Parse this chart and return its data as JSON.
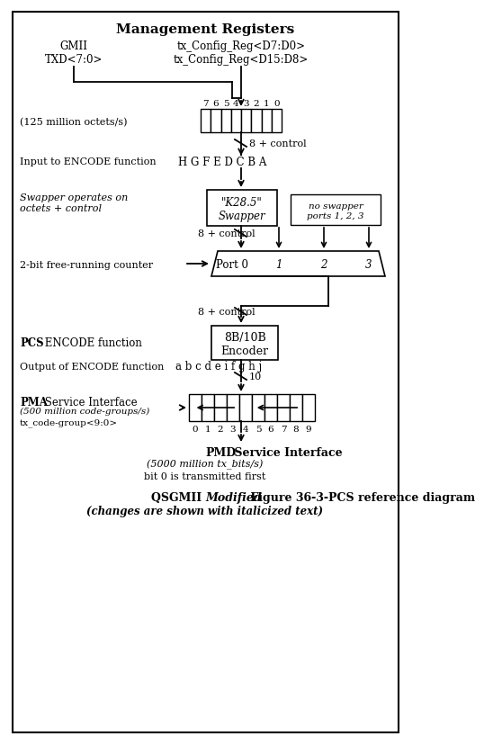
{
  "title": "Management Registers",
  "fig_width": 4.37,
  "fig_height": 8.09,
  "bg_color": "#ffffff",
  "line_color": "#000000",
  "gmii_label": "GMII\nTXD<7:0>",
  "config_label": "tx_Config_Reg<D7:D0>\ntx_Config_Reg<D15:D8>",
  "reg8_numbers": [
    "7",
    "6",
    "5",
    "4",
    "3",
    "2",
    "1",
    "0"
  ],
  "reg8_label": "(125 million octets/s)",
  "encode_input_label": "Input to ENCODE function",
  "hgfe_label": "H G F E D C B A",
  "swapper_side_label": "Swapper operates on\noctets + control",
  "swapper_box_label": "\"K28.5\"\nSwapper",
  "noswapper_label": "no swapper\nports 1, 2, 3",
  "counter_label": "2-bit free-running counter",
  "port_labels": [
    "Port 0",
    "1",
    "2",
    "3"
  ],
  "pcs_label": "PCS ENCODE function",
  "encoder_box_label": "8B/10B\nEncoder",
  "encode_out_label": "Output of ENCODE function",
  "abcde_label": "a b c d e i f g h j",
  "reg10_numbers": [
    "0",
    "1",
    "2",
    "3",
    "4",
    "5",
    "6",
    "7",
    "8",
    "9"
  ],
  "pma_label1": "PMA Service Interface",
  "pma_label2": "(500 million code-groups/s)",
  "pma_label3": "tx_code-group<9:0>",
  "pmd_label1": "PMD Service Interface",
  "pmd_label2": "(5000 million tx_bits/s)",
  "pmd_label3": "bit 0 is transmitted first",
  "caption1a": "QSGMII ",
  "caption1b": "Modified",
  "caption1c": " Figure 36-3-PCS reference diagram",
  "caption2": "(changes are shown with italicized text)"
}
